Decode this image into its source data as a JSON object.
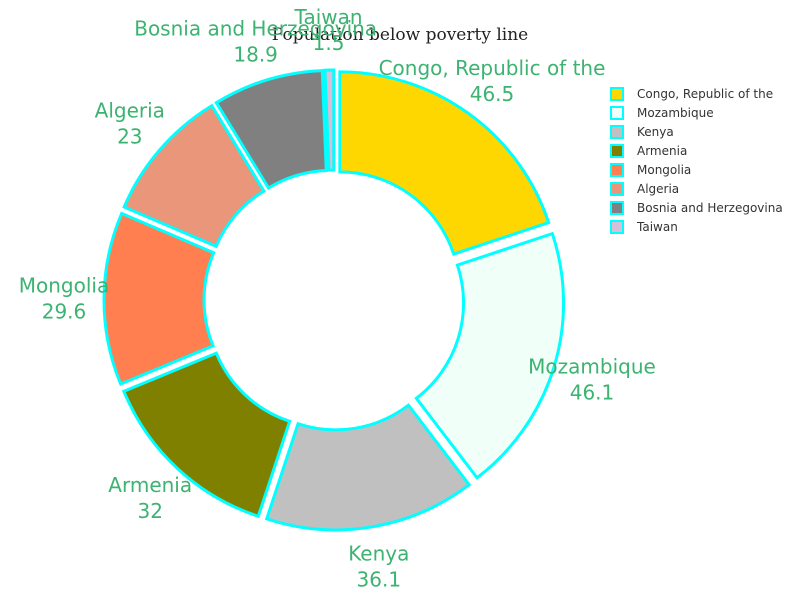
{
  "chart_data": {
    "type": "pie",
    "title": "Population below poverty line",
    "hole": true,
    "slices": [
      {
        "label": "Congo, Republic of the",
        "value": 46.5,
        "color": "#FFD700"
      },
      {
        "label": "Mozambique",
        "value": 46.1,
        "color": "#F0FFF8"
      },
      {
        "label": "Kenya",
        "value": 36.1,
        "color": "#C0C0C0"
      },
      {
        "label": "Armenia",
        "value": 32,
        "color": "#808000"
      },
      {
        "label": "Mongolia",
        "value": 29.6,
        "color": "#FF7F50"
      },
      {
        "label": "Algeria",
        "value": 23,
        "color": "#E9967A"
      },
      {
        "label": "Bosnia and Herzegovina",
        "value": 18.9,
        "color": "#808080"
      },
      {
        "label": "Taiwan",
        "value": 1.5,
        "color": "#D8BFD8"
      }
    ],
    "outline_color": "#00FFFF",
    "label_color": "#3CB371",
    "legend_position": "top-right"
  }
}
